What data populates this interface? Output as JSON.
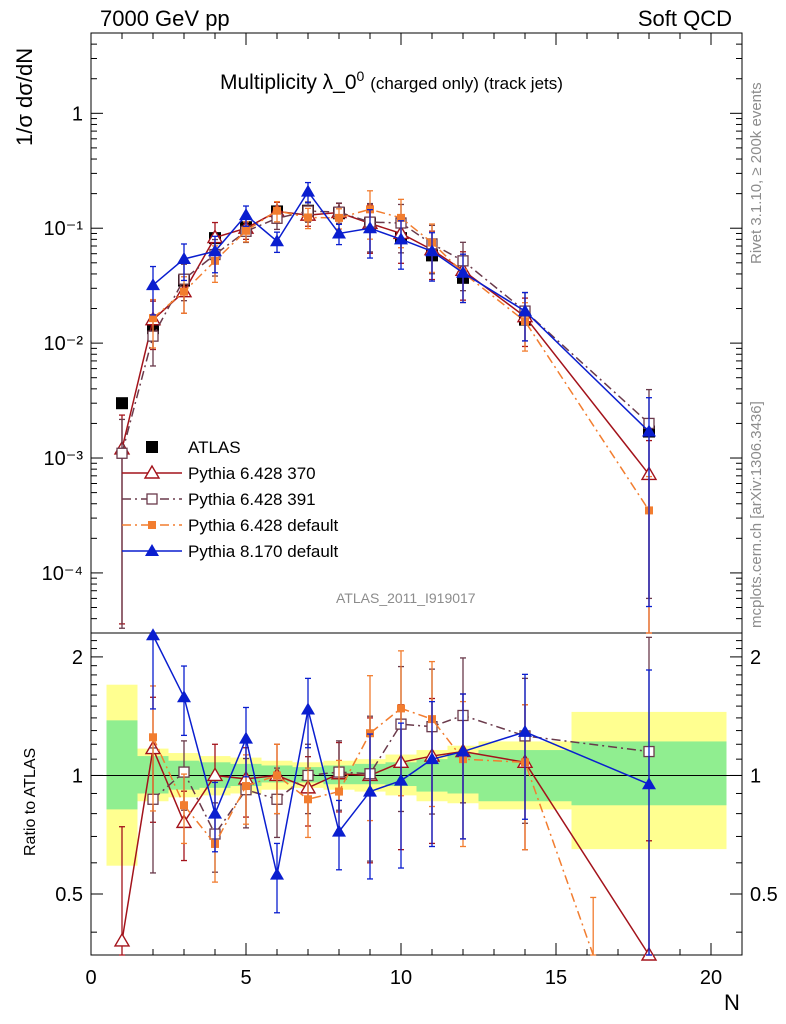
{
  "header": {
    "left": "7000 GeV pp",
    "right": "Soft QCD"
  },
  "side_text": {
    "rivet": "Rivet 3.1.10, ≥ 200k events",
    "source": "mcplots.cern.ch [arXiv:1306.3436]"
  },
  "colors": {
    "atlas": "#000000",
    "p370": "#a3131b",
    "p391": "#6a3a4b",
    "pdefault": "#f27d2f",
    "p8": "#0a1ecf",
    "band_inner": "#90ee90",
    "band_outer": "#ffff90"
  },
  "chart_data": [
    {
      "type": "scatter",
      "title": "Multiplicity λ_0",
      "title_sup": "0",
      "title_small": "(charged only) (track jets)",
      "ylabel": "1/σ dσ/dN",
      "yscale": "log",
      "ylim": [
        3e-05,
        5
      ],
      "xlim": [
        0,
        21
      ],
      "analysis_label": "ATLAS_2011_I919017",
      "legend_position": "lower-left",
      "yticks": [
        "1",
        "10⁻¹",
        "10⁻²",
        "10⁻³",
        "10⁻⁴"
      ],
      "series": [
        {
          "name": "ATLAS",
          "key": "atlas",
          "marker": "square-filled",
          "line": "none",
          "x": [
            1,
            2,
            3,
            4,
            5,
            6,
            7,
            8,
            9,
            10,
            11,
            12,
            14,
            18
          ],
          "y": [
            0.003,
            0.0135,
            0.035,
            0.082,
            0.102,
            0.14,
            0.142,
            0.135,
            0.11,
            0.082,
            0.058,
            0.037,
            0.016,
            0.0017
          ]
        },
        {
          "name": "Pythia 6.428 370",
          "key": "p370",
          "marker": "triangle-open",
          "line": "solid",
          "x": [
            1,
            2,
            3,
            4,
            5,
            6,
            7,
            8,
            9,
            10,
            11,
            12,
            14,
            18
          ],
          "y": [
            0.0012,
            0.016,
            0.028,
            0.083,
            0.1,
            0.14,
            0.13,
            0.137,
            0.11,
            0.09,
            0.065,
            0.043,
            0.017,
            0.00072
          ]
        },
        {
          "name": "Pythia 6.428 391",
          "key": "p391",
          "marker": "square-open",
          "line": "dash-dot",
          "x": [
            1,
            2,
            3,
            4,
            5,
            6,
            7,
            8,
            9,
            10,
            11,
            12,
            14,
            18
          ],
          "y": [
            0.0011,
            0.0115,
            0.036,
            0.059,
            0.094,
            0.122,
            0.141,
            0.138,
            0.113,
            0.111,
            0.073,
            0.052,
            0.019,
            0.002
          ]
        },
        {
          "name": "Pythia 6.428 default",
          "key": "pdefault",
          "marker": "square-small",
          "line": "dash-dot",
          "x": [
            2,
            3,
            4,
            5,
            6,
            7,
            8,
            9,
            10,
            11,
            12,
            14,
            18
          ],
          "y": [
            0.0165,
            0.028,
            0.052,
            0.095,
            0.142,
            0.124,
            0.123,
            0.146,
            0.123,
            0.075,
            0.041,
            0.0155,
            0.00035
          ]
        },
        {
          "name": "Pythia 8.170 default",
          "key": "p8",
          "marker": "triangle-filled",
          "line": "solid",
          "x": [
            2,
            3,
            4,
            5,
            6,
            7,
            8,
            9,
            10,
            11,
            12,
            14,
            18
          ],
          "y": [
            0.032,
            0.054,
            0.063,
            0.13,
            0.077,
            0.208,
            0.09,
            0.1,
            0.08,
            0.063,
            0.041,
            0.019,
            0.0017
          ]
        }
      ]
    },
    {
      "type": "scatter",
      "ylabel": "Ratio to ATLAS",
      "xlabel": "N",
      "yscale": "log",
      "ylim": [
        0.35,
        2.3
      ],
      "xlim": [
        0,
        21
      ],
      "xticks": [
        0,
        5,
        10,
        15,
        20
      ],
      "yticks": [
        0.5,
        1,
        2
      ],
      "reference": 1,
      "bands": {
        "edges": [
          0.5,
          1.5,
          2.5,
          3.5,
          4.5,
          5.5,
          6.5,
          7.5,
          8.5,
          9.5,
          10.5,
          11.5,
          12.5,
          15.5,
          20.5
        ],
        "inner_lo": [
          0.82,
          0.9,
          0.92,
          0.93,
          0.94,
          0.96,
          0.96,
          0.95,
          0.95,
          0.94,
          0.91,
          0.9,
          0.86,
          0.84
        ],
        "inner_hi": [
          1.38,
          1.12,
          1.09,
          1.08,
          1.07,
          1.06,
          1.05,
          1.06,
          1.07,
          1.08,
          1.1,
          1.14,
          1.16,
          1.22
        ],
        "outer_lo": [
          0.59,
          0.86,
          0.88,
          0.89,
          0.9,
          0.92,
          0.93,
          0.92,
          0.91,
          0.89,
          0.86,
          0.85,
          0.82,
          0.65
        ],
        "outer_hi": [
          1.7,
          1.17,
          1.14,
          1.12,
          1.11,
          1.09,
          1.08,
          1.09,
          1.1,
          1.13,
          1.16,
          1.19,
          1.22,
          1.45
        ]
      },
      "series": [
        {
          "name": "Pythia 6.428 370",
          "key": "p370",
          "marker": "triangle-open",
          "line": "solid",
          "x": [
            1,
            2,
            3,
            4,
            5,
            6,
            7,
            8,
            9,
            10,
            11,
            12,
            14,
            18
          ],
          "y": [
            0.38,
            1.17,
            0.76,
            1.0,
            0.98,
            1.0,
            0.93,
            1.01,
            1.0,
            1.08,
            1.12,
            1.15,
            1.08,
            0.35
          ]
        },
        {
          "name": "Pythia 6.428 391",
          "key": "p391",
          "marker": "square-open",
          "line": "dash-dot",
          "x": [
            2,
            3,
            4,
            5,
            6,
            7,
            8,
            9,
            10,
            11,
            12,
            14,
            18
          ],
          "y": [
            0.87,
            1.02,
            0.71,
            0.92,
            0.87,
            1.0,
            1.02,
            1.01,
            1.35,
            1.33,
            1.42,
            1.26,
            1.15
          ]
        },
        {
          "name": "Pythia 6.428 default",
          "key": "pdefault",
          "marker": "square-small",
          "line": "dash-dot",
          "x": [
            2,
            3,
            4,
            5,
            6,
            7,
            8,
            9,
            10,
            11,
            12,
            14,
            16.2
          ],
          "y": [
            1.25,
            0.84,
            0.67,
            0.94,
            1.0,
            0.87,
            0.91,
            1.28,
            1.48,
            1.39,
            1.1,
            1.08,
            0.35
          ],
          "show_marker": [
            true,
            true,
            true,
            true,
            true,
            true,
            true,
            true,
            true,
            true,
            true,
            true,
            false
          ]
        },
        {
          "name": "Pythia 8.170 default",
          "key": "p8",
          "marker": "triangle-filled",
          "line": "solid",
          "x": [
            2,
            3,
            4,
            5,
            6,
            7,
            8,
            9,
            10,
            11,
            12,
            14,
            18
          ],
          "y": [
            2.27,
            1.58,
            0.8,
            1.24,
            0.56,
            1.47,
            0.72,
            0.91,
            0.97,
            1.1,
            1.15,
            1.29,
            0.95
          ]
        }
      ]
    }
  ]
}
